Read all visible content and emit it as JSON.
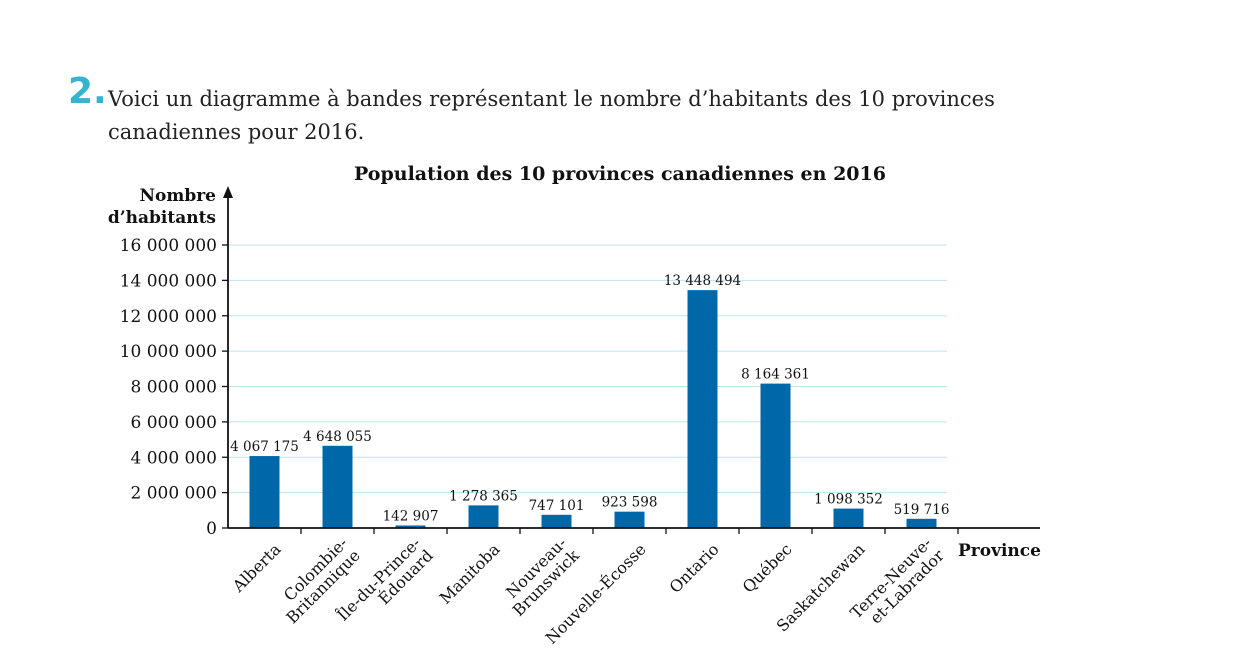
{
  "question": {
    "number": "2.",
    "line1": "Voici un diagramme à bandes représentant le nombre d’habitants des 10 provinces",
    "line2": "canadiennes pour 2016."
  },
  "chart_data": {
    "type": "bar",
    "title": "Population des 10 provinces canadiennes en 2016",
    "ylabel": [
      "Nombre",
      "d’habitants"
    ],
    "xlabel": "Province",
    "ylim": [
      0,
      16000000
    ],
    "yticks": [
      {
        "value": 0,
        "label": "0"
      },
      {
        "value": 2000000,
        "label": "2 000 000"
      },
      {
        "value": 4000000,
        "label": "4 000 000"
      },
      {
        "value": 6000000,
        "label": "6 000 000"
      },
      {
        "value": 8000000,
        "label": "8 000 000"
      },
      {
        "value": 10000000,
        "label": "10 000 000"
      },
      {
        "value": 12000000,
        "label": "12 000 000"
      },
      {
        "value": 14000000,
        "label": "14 000 000"
      },
      {
        "value": 16000000,
        "label": "16 000 000"
      }
    ],
    "grid": true,
    "bar_color": "#0067a9",
    "grid_color": "#bfe3ef",
    "categories": [
      {
        "lines": [
          "Alberta"
        ],
        "value": 4067175,
        "label": "4 067 175"
      },
      {
        "lines": [
          "Colombie-",
          "Britannique"
        ],
        "value": 4648055,
        "label": "4 648 055"
      },
      {
        "lines": [
          "Île-du-Prince-",
          "Édouard"
        ],
        "value": 142907,
        "label": "142 907"
      },
      {
        "lines": [
          "Manitoba"
        ],
        "value": 1278365,
        "label": "1 278 365"
      },
      {
        "lines": [
          "Nouveau-",
          "Brunswick"
        ],
        "value": 747101,
        "label": "747 101"
      },
      {
        "lines": [
          "Nouvelle-Écosse"
        ],
        "value": 923598,
        "label": "923 598"
      },
      {
        "lines": [
          "Ontario"
        ],
        "value": 13448494,
        "label": "13 448 494"
      },
      {
        "lines": [
          "Québec"
        ],
        "value": 8164361,
        "label": "8 164 361"
      },
      {
        "lines": [
          "Saskatchewan"
        ],
        "value": 1098352,
        "label": "1 098 352"
      },
      {
        "lines": [
          "Terre-Neuve-",
          "et-Labrador"
        ],
        "value": 519716,
        "label": "519 716"
      }
    ]
  }
}
